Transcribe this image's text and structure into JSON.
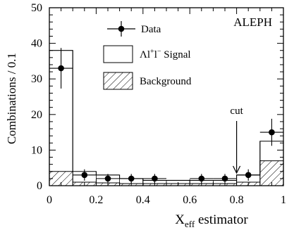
{
  "chart_data": {
    "type": "bar",
    "tag": "ALEPH",
    "xlabel_main": "X",
    "xlabel_sub": "eff",
    "xlabel_rest": " estimator",
    "ylabel": "Combinations / 0.1",
    "xlim": [
      0,
      1
    ],
    "ylim": [
      0,
      50
    ],
    "xticks": [
      0,
      0.2,
      0.4,
      0.6,
      0.8,
      1
    ],
    "xtick_labels": [
      "0",
      "0.2",
      "0.4",
      "0.6",
      "0.8",
      "1"
    ],
    "yticks": [
      0,
      10,
      20,
      30,
      40,
      50
    ],
    "ytick_labels": [
      "0",
      "10",
      "20",
      "30",
      "40",
      "50"
    ],
    "bin_edges": [
      0,
      0.1,
      0.2,
      0.3,
      0.4,
      0.5,
      0.6,
      0.7,
      0.8,
      0.9,
      1.0
    ],
    "signal_plus_background": [
      38.0,
      4.0,
      3.0,
      2.0,
      1.5,
      1.5,
      1.5,
      1.5,
      3.0,
      12.5
    ],
    "background": [
      4.0,
      1.0,
      0.8,
      0.6,
      0.6,
      0.6,
      0.6,
      0.6,
      1.0,
      7.0
    ],
    "data": {
      "x": [
        0.05,
        0.15,
        0.25,
        0.35,
        0.45,
        0.65,
        0.75,
        0.85,
        0.95
      ],
      "y": [
        33,
        3,
        2,
        2,
        2,
        2,
        2,
        3,
        15
      ],
      "yerr_low": [
        5.7,
        1.6,
        1.3,
        1.3,
        1.3,
        1.3,
        1.3,
        1.6,
        3.8
      ],
      "yerr_high": [
        5.7,
        1.6,
        1.3,
        1.3,
        1.3,
        1.3,
        1.3,
        1.6,
        3.8
      ]
    },
    "legend": {
      "data_label": "Data",
      "signal_label_pre": "Λl",
      "signal_label_sup": "+",
      "signal_label_mid": "l",
      "signal_label_sup2": "−",
      "signal_label_post": " Signal",
      "background_label": "Background"
    },
    "annotation": {
      "text": "cut",
      "x": 0.8
    }
  }
}
